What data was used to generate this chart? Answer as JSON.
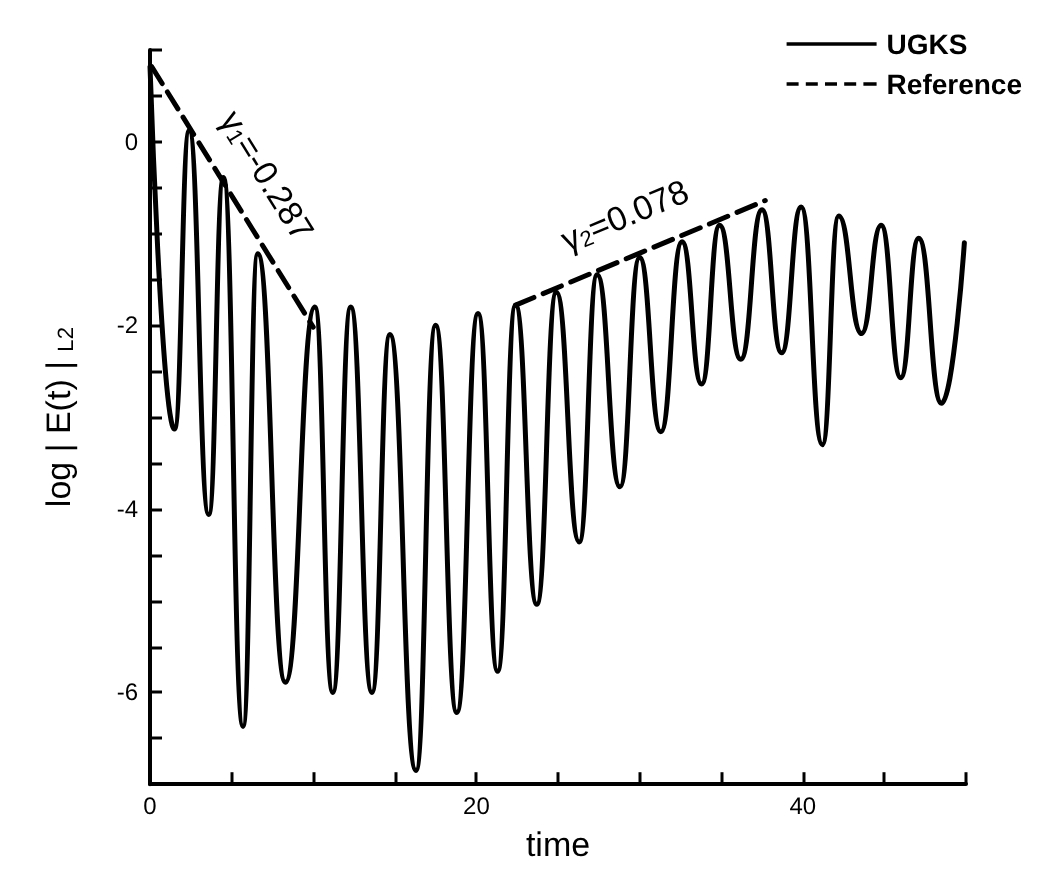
{
  "chart_data": {
    "type": "line",
    "xlabel": "time",
    "ylabel": "log | E(t) | $_{L2}$",
    "xlim": [
      0,
      50
    ],
    "xticks": [
      0,
      {
        "value": 5,
        "label": null
      },
      {
        "value": 10,
        "label": null
      },
      {
        "value": 15,
        "label": null
      },
      20,
      {
        "value": 25,
        "label": null
      },
      {
        "value": 30,
        "label": null
      },
      {
        "value": 35,
        "label": null
      },
      40,
      {
        "value": 45,
        "label": null
      },
      {
        "value": 50,
        "label": null
      }
    ],
    "ylim": [
      -7,
      1
    ],
    "yticks": [
      {
        "value": -7,
        "label": null
      },
      {
        "value": -6.5,
        "label": null
      },
      -6,
      {
        "value": -5.5,
        "label": null
      },
      {
        "value": -5,
        "label": null
      },
      {
        "value": -4.5,
        "label": null
      },
      -4,
      {
        "value": -3.5,
        "label": null
      },
      {
        "value": -3,
        "label": null
      },
      {
        "value": -2.5,
        "label": null
      },
      -2,
      {
        "value": -1.5,
        "label": null
      },
      {
        "value": -1,
        "label": null
      },
      {
        "value": -0.5,
        "label": null
      },
      0,
      {
        "value": 0.5,
        "label": null
      },
      {
        "value": 1,
        "label": null
      }
    ],
    "grid": false,
    "legend": "top right",
    "marker": "none",
    "series": [
      {
        "name": "UGKS",
        "color": "#000000",
        "line_style": "solid",
        "x": [
          0,
          1.5,
          2.4,
          3.6,
          4.5,
          5.7,
          6.6,
          8.3,
          10.1,
          11.2,
          12.3,
          13.6,
          14.7,
          16.3,
          17.5,
          18.8,
          20.1,
          21.3,
          22.4,
          23.7,
          24.9,
          26.3,
          27.4,
          28.8,
          30.0,
          31.3,
          32.6,
          33.8,
          34.9,
          36.2,
          37.5,
          38.7,
          39.9,
          41.2,
          42.2,
          43.6,
          44.8,
          46.0,
          47.1,
          48.5,
          49.9
        ],
        "values": [
          0.82,
          -3.13,
          0.12,
          -4.06,
          -0.39,
          -6.37,
          -1.22,
          -5.89,
          -1.8,
          -6.0,
          -1.8,
          -6.0,
          -2.1,
          -6.85,
          -2.0,
          -6.22,
          -1.87,
          -5.77,
          -1.78,
          -5.04,
          -1.64,
          -4.36,
          -1.45,
          -3.76,
          -1.26,
          -3.16,
          -1.09,
          -2.64,
          -0.91,
          -2.37,
          -0.74,
          -2.3,
          -0.71,
          -3.3,
          -0.81,
          -2.09,
          -0.91,
          -2.57,
          -1.05,
          -2.85,
          -1.1
        ]
      },
      {
        "name": "Reference",
        "color": "#000000",
        "line_style": "dashed",
        "x": [
          0.1,
          10.0,
          16,
          22.4,
          37.7
        ],
        "values": [
          0.82,
          -2.02,
          null,
          -1.78,
          -0.64
        ]
      }
    ],
    "annotations": [
      "γ$_{1}$=-0.287",
      "γ$_{2}$=0.078"
    ]
  }
}
